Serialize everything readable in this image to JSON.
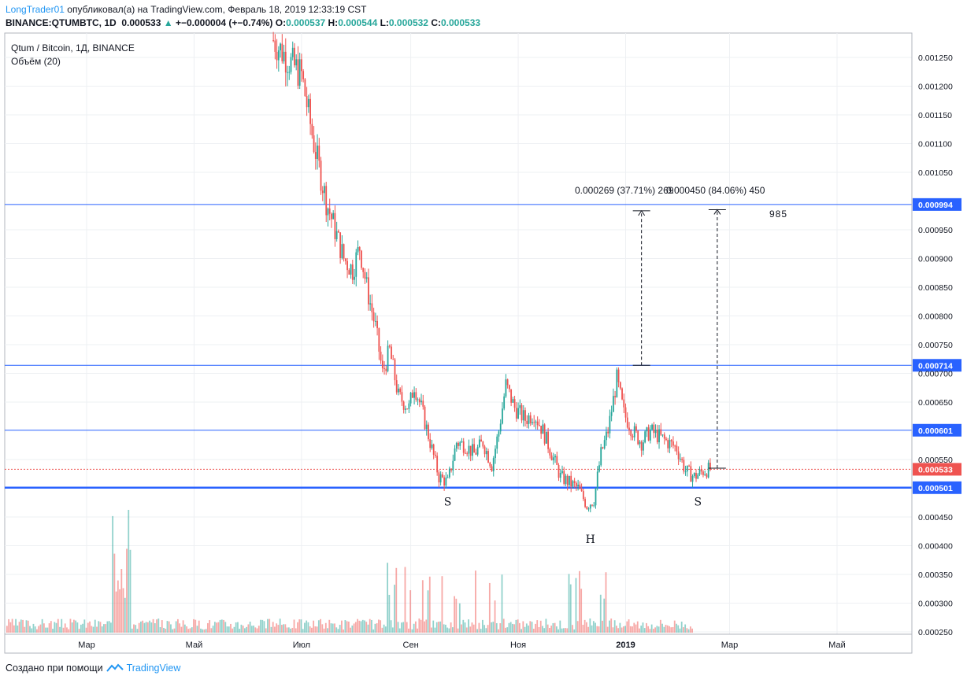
{
  "header": {
    "author": "LongTrader01",
    "published_text": "опубликовал(а) на TradingView.com, Февраль 18, 2019 12:33:19 CST",
    "symbol_line": "BINANCE:QTUMBTC, 1D",
    "last": "0.000533",
    "change_arrow": "▲",
    "change": "+−0.000004 (+−0.74%)",
    "o_label": "O:",
    "o": "0.000537",
    "h_label": "H:",
    "h": "0.000544",
    "l_label": "L:",
    "l": "0.000532",
    "c_label": "C:",
    "c": "0.000533"
  },
  "chart_legend": {
    "title": "Qtum / Bitcoin, 1Д, BINANCE",
    "volume": "Объём (20)"
  },
  "footer": {
    "created_with": "Создано при помощи",
    "brand": "TradingView"
  },
  "chart_data": {
    "type": "candlestick",
    "symbol": "QTUMBTC",
    "interval": "1D",
    "ylim": [
      0.00025,
      0.00128
    ],
    "y_ticks": [
      "0.001250",
      "0.001200",
      "0.001150",
      "0.001100",
      "0.001050",
      "0.000950",
      "0.000900",
      "0.000850",
      "0.000800",
      "0.000750",
      "0.000700",
      "0.000650",
      "0.000550",
      "0.000450",
      "0.000400",
      "0.000350",
      "0.000300",
      "0.000250"
    ],
    "x_ticks": [
      "Мар",
      "Май",
      "Июл",
      "Сен",
      "Ноя",
      "2019",
      "Мар",
      "Май"
    ],
    "price_points": [
      {
        "date": "2018-06-15",
        "close": 0.00128
      },
      {
        "date": "2018-06-25",
        "close": 0.00124
      },
      {
        "date": "2018-07-01",
        "close": 0.00122
      },
      {
        "date": "2018-07-08",
        "close": 0.0011
      },
      {
        "date": "2018-07-15",
        "close": 0.001
      },
      {
        "date": "2018-07-20",
        "close": 0.00095
      },
      {
        "date": "2018-07-25",
        "close": 0.0009
      },
      {
        "date": "2018-07-30",
        "close": 0.00088
      },
      {
        "date": "2018-08-03",
        "close": 0.00092
      },
      {
        "date": "2018-08-07",
        "close": 0.00085
      },
      {
        "date": "2018-08-12",
        "close": 0.00078
      },
      {
        "date": "2018-08-16",
        "close": 0.0007
      },
      {
        "date": "2018-08-20",
        "close": 0.00074
      },
      {
        "date": "2018-08-25",
        "close": 0.00066
      },
      {
        "date": "2018-08-31",
        "close": 0.00064
      },
      {
        "date": "2018-09-03",
        "close": 0.00068
      },
      {
        "date": "2018-09-07",
        "close": 0.00064
      },
      {
        "date": "2018-09-12",
        "close": 0.00058
      },
      {
        "date": "2018-09-17",
        "close": 0.00052
      },
      {
        "date": "2018-09-22",
        "close": 0.00051
      },
      {
        "date": "2018-09-27",
        "close": 0.00058
      },
      {
        "date": "2018-10-02",
        "close": 0.000575
      },
      {
        "date": "2018-10-07",
        "close": 0.00056
      },
      {
        "date": "2018-10-12",
        "close": 0.00058
      },
      {
        "date": "2018-10-17",
        "close": 0.00054
      },
      {
        "date": "2018-10-21",
        "close": 0.0006
      },
      {
        "date": "2018-10-25",
        "close": 0.00068
      },
      {
        "date": "2018-10-30",
        "close": 0.00064
      },
      {
        "date": "2018-11-05",
        "close": 0.00062
      },
      {
        "date": "2018-11-10",
        "close": 0.00063
      },
      {
        "date": "2018-11-15",
        "close": 0.0006
      },
      {
        "date": "2018-11-20",
        "close": 0.00056
      },
      {
        "date": "2018-11-25",
        "close": 0.00052
      },
      {
        "date": "2018-11-30",
        "close": 0.00051
      },
      {
        "date": "2018-12-05",
        "close": 0.0005
      },
      {
        "date": "2018-12-10",
        "close": 0.00047
      },
      {
        "date": "2018-12-14",
        "close": 0.00048
      },
      {
        "date": "2018-12-18",
        "close": 0.00056
      },
      {
        "date": "2018-12-22",
        "close": 0.0006
      },
      {
        "date": "2018-12-27",
        "close": 0.00069
      },
      {
        "date": "2018-12-31",
        "close": 0.00063
      },
      {
        "date": "2019-01-05",
        "close": 0.0006
      },
      {
        "date": "2019-01-10",
        "close": 0.00058
      },
      {
        "date": "2019-01-15",
        "close": 0.0006
      },
      {
        "date": "2019-01-20",
        "close": 0.00059
      },
      {
        "date": "2019-01-25",
        "close": 0.00058
      },
      {
        "date": "2019-01-30",
        "close": 0.00057
      },
      {
        "date": "2019-02-04",
        "close": 0.00053
      },
      {
        "date": "2019-02-09",
        "close": 0.00052
      },
      {
        "date": "2019-02-14",
        "close": 0.00053
      },
      {
        "date": "2019-02-18",
        "close": 0.000533
      }
    ],
    "volume_note": "Объём (20)",
    "horizontal_levels": [
      {
        "price": 0.000994,
        "label": "0.000994",
        "color": "#2962ff"
      },
      {
        "price": 0.000714,
        "label": "0.000714",
        "color": "#2962ff"
      },
      {
        "price": 0.000601,
        "label": "0.000601",
        "color": "#2962ff"
      },
      {
        "price": 0.000533,
        "label": "0.000533",
        "color": "#ef5350",
        "style": "dotted"
      },
      {
        "price": 0.000501,
        "label": "0.000501",
        "color": "#2962ff",
        "thick": true
      }
    ],
    "measurements": [
      {
        "label": "0.000269 (37.71%) 269",
        "from_date": "2019-01-10",
        "from_price": 0.000714,
        "to_price": 0.000983
      },
      {
        "label": "0.000450 (84.06%) 450",
        "from_date": "2019-02-22",
        "from_price": 0.000535,
        "to_price": 0.000985
      }
    ],
    "measurement_side_label": "985",
    "pattern_labels": [
      {
        "text": "S",
        "date": "2018-09-22",
        "price": 0.00047
      },
      {
        "text": "H",
        "date": "2018-12-12",
        "price": 0.000405
      },
      {
        "text": "S",
        "date": "2019-02-11",
        "price": 0.00047
      }
    ]
  }
}
